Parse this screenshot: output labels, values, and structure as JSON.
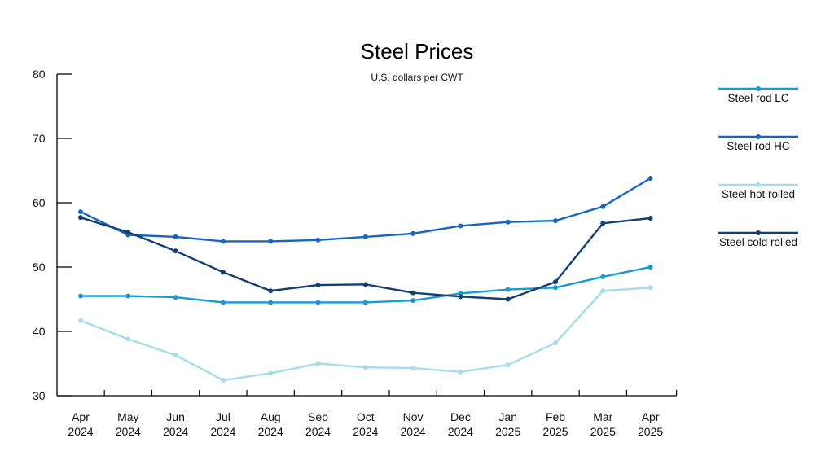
{
  "chart_data": {
    "type": "line",
    "title": "Steel Prices",
    "subtitle": "U.S. dollars per CWT",
    "xlabel": "",
    "ylabel": "",
    "ylim": [
      30,
      80
    ],
    "yticks": [
      30,
      40,
      50,
      60,
      70,
      80
    ],
    "grid": false,
    "legend_position": "right",
    "categories": [
      [
        "Apr",
        "2024"
      ],
      [
        "May",
        "2024"
      ],
      [
        "Jun",
        "2024"
      ],
      [
        "Jul",
        "2024"
      ],
      [
        "Aug",
        "2024"
      ],
      [
        "Sep",
        "2024"
      ],
      [
        "Oct",
        "2024"
      ],
      [
        "Nov",
        "2024"
      ],
      [
        "Dec",
        "2024"
      ],
      [
        "Jan",
        "2025"
      ],
      [
        "Feb",
        "2025"
      ],
      [
        "Mar",
        "2025"
      ],
      [
        "Apr",
        "2025"
      ]
    ],
    "series": [
      {
        "name": "Steel rod LC",
        "color": "#1a9bcf",
        "values": [
          45.5,
          45.5,
          45.3,
          44.5,
          44.5,
          44.5,
          44.5,
          44.8,
          45.9,
          46.5,
          46.8,
          48.5,
          50.0
        ]
      },
      {
        "name": "Steel rod HC",
        "color": "#1666c0",
        "values": [
          58.6,
          55.0,
          54.7,
          54.0,
          54.0,
          54.2,
          54.7,
          55.2,
          56.4,
          57.0,
          57.2,
          59.4,
          63.8
        ]
      },
      {
        "name": "Steel hot rolled",
        "color": "#a6dcec",
        "values": [
          41.7,
          38.8,
          36.3,
          32.4,
          33.5,
          35.0,
          34.4,
          34.3,
          33.7,
          34.8,
          38.2,
          46.3,
          46.8
        ]
      },
      {
        "name": "Steel cold rolled",
        "color": "#143f72",
        "values": [
          57.7,
          55.4,
          52.5,
          49.2,
          46.3,
          47.2,
          47.3,
          46.0,
          45.4,
          45.0,
          47.7,
          56.8,
          57.6
        ]
      }
    ]
  }
}
